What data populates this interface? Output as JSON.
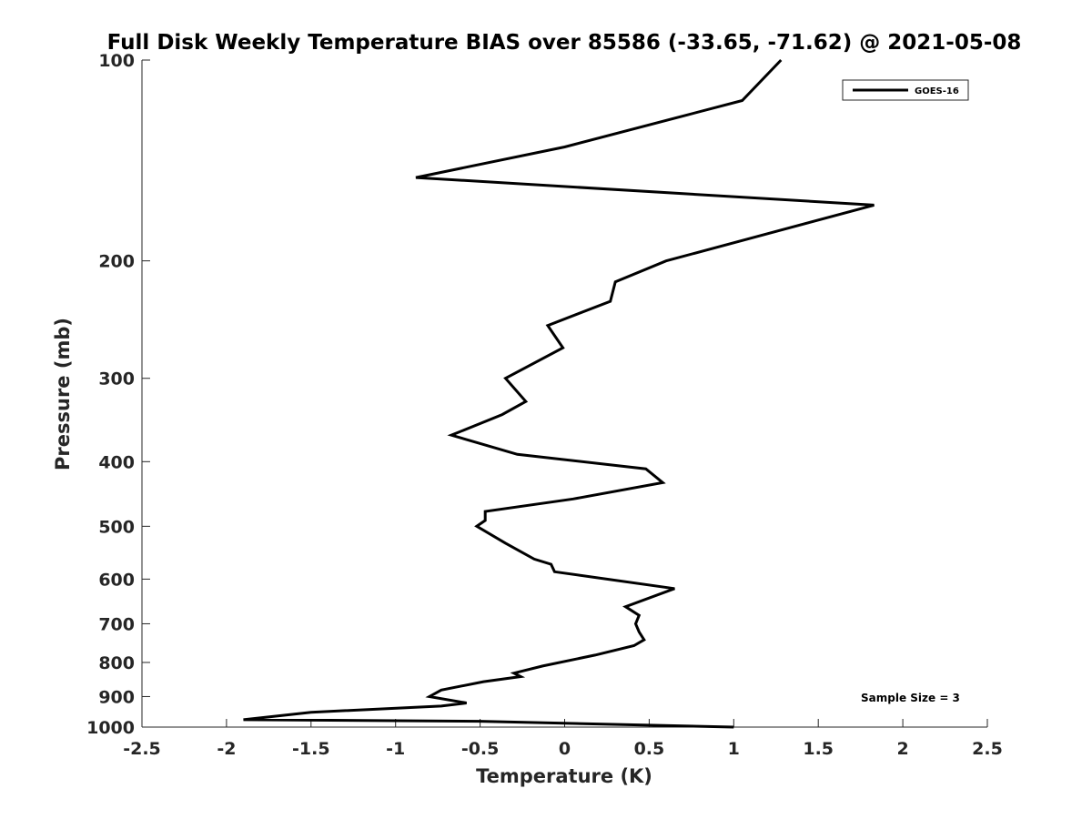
{
  "chart_data": {
    "type": "line",
    "title": "Full Disk Weekly Temperature BIAS over 85586 (-33.65, -71.62) @ 2021-05-08",
    "xlabel": "Temperature (K)",
    "ylabel": "Pressure (mb)",
    "xlim": [
      -2.5,
      2.5
    ],
    "ylim": [
      100,
      1000
    ],
    "yscale": "log",
    "y_reversed": true,
    "x_ticks": [
      -2.5,
      -2,
      -1.5,
      -1,
      -0.5,
      0,
      0.5,
      1,
      1.5,
      2,
      2.5
    ],
    "x_tick_labels": [
      "-2.5",
      "-2",
      "-1.5",
      "-1",
      "-0.5",
      "0",
      "0.5",
      "1",
      "1.5",
      "2",
      "2.5"
    ],
    "y_ticks": [
      100,
      200,
      300,
      400,
      500,
      600,
      700,
      800,
      900,
      1000
    ],
    "y_tick_labels": [
      "100",
      "200",
      "300",
      "400",
      "500",
      "600",
      "700",
      "800",
      "900",
      "1000"
    ],
    "grid": false,
    "legend_position": "top-right",
    "annotation": "Sample Size = 3",
    "series": [
      {
        "name": "GOES-16",
        "color": "#000000",
        "points": [
          {
            "x": 1.28,
            "y": 100
          },
          {
            "x": 1.05,
            "y": 115
          },
          {
            "x": 0.0,
            "y": 135
          },
          {
            "x": -0.88,
            "y": 150
          },
          {
            "x": 1.83,
            "y": 165
          },
          {
            "x": 0.6,
            "y": 200
          },
          {
            "x": 0.3,
            "y": 215
          },
          {
            "x": 0.27,
            "y": 230
          },
          {
            "x": -0.1,
            "y": 250
          },
          {
            "x": -0.01,
            "y": 270
          },
          {
            "x": -0.35,
            "y": 300
          },
          {
            "x": -0.23,
            "y": 325
          },
          {
            "x": -0.37,
            "y": 340
          },
          {
            "x": -0.67,
            "y": 365
          },
          {
            "x": -0.28,
            "y": 390
          },
          {
            "x": 0.48,
            "y": 410
          },
          {
            "x": 0.58,
            "y": 430
          },
          {
            "x": 0.05,
            "y": 455
          },
          {
            "x": -0.47,
            "y": 475
          },
          {
            "x": -0.47,
            "y": 490
          },
          {
            "x": -0.52,
            "y": 500
          },
          {
            "x": -0.35,
            "y": 530
          },
          {
            "x": -0.18,
            "y": 560
          },
          {
            "x": -0.08,
            "y": 570
          },
          {
            "x": -0.06,
            "y": 585
          },
          {
            "x": 0.65,
            "y": 620
          },
          {
            "x": 0.36,
            "y": 660
          },
          {
            "x": 0.44,
            "y": 680
          },
          {
            "x": 0.42,
            "y": 700
          },
          {
            "x": 0.44,
            "y": 720
          },
          {
            "x": 0.47,
            "y": 740
          },
          {
            "x": 0.41,
            "y": 755
          },
          {
            "x": 0.18,
            "y": 780
          },
          {
            "x": -0.13,
            "y": 810
          },
          {
            "x": -0.3,
            "y": 830
          },
          {
            "x": -0.26,
            "y": 840
          },
          {
            "x": -0.48,
            "y": 855
          },
          {
            "x": -0.73,
            "y": 880
          },
          {
            "x": -0.8,
            "y": 900
          },
          {
            "x": -0.58,
            "y": 920
          },
          {
            "x": -0.73,
            "y": 930
          },
          {
            "x": -1.5,
            "y": 950
          },
          {
            "x": -1.9,
            "y": 975
          },
          {
            "x": -0.5,
            "y": 980
          },
          {
            "x": 1.0,
            "y": 1000
          }
        ]
      }
    ]
  }
}
